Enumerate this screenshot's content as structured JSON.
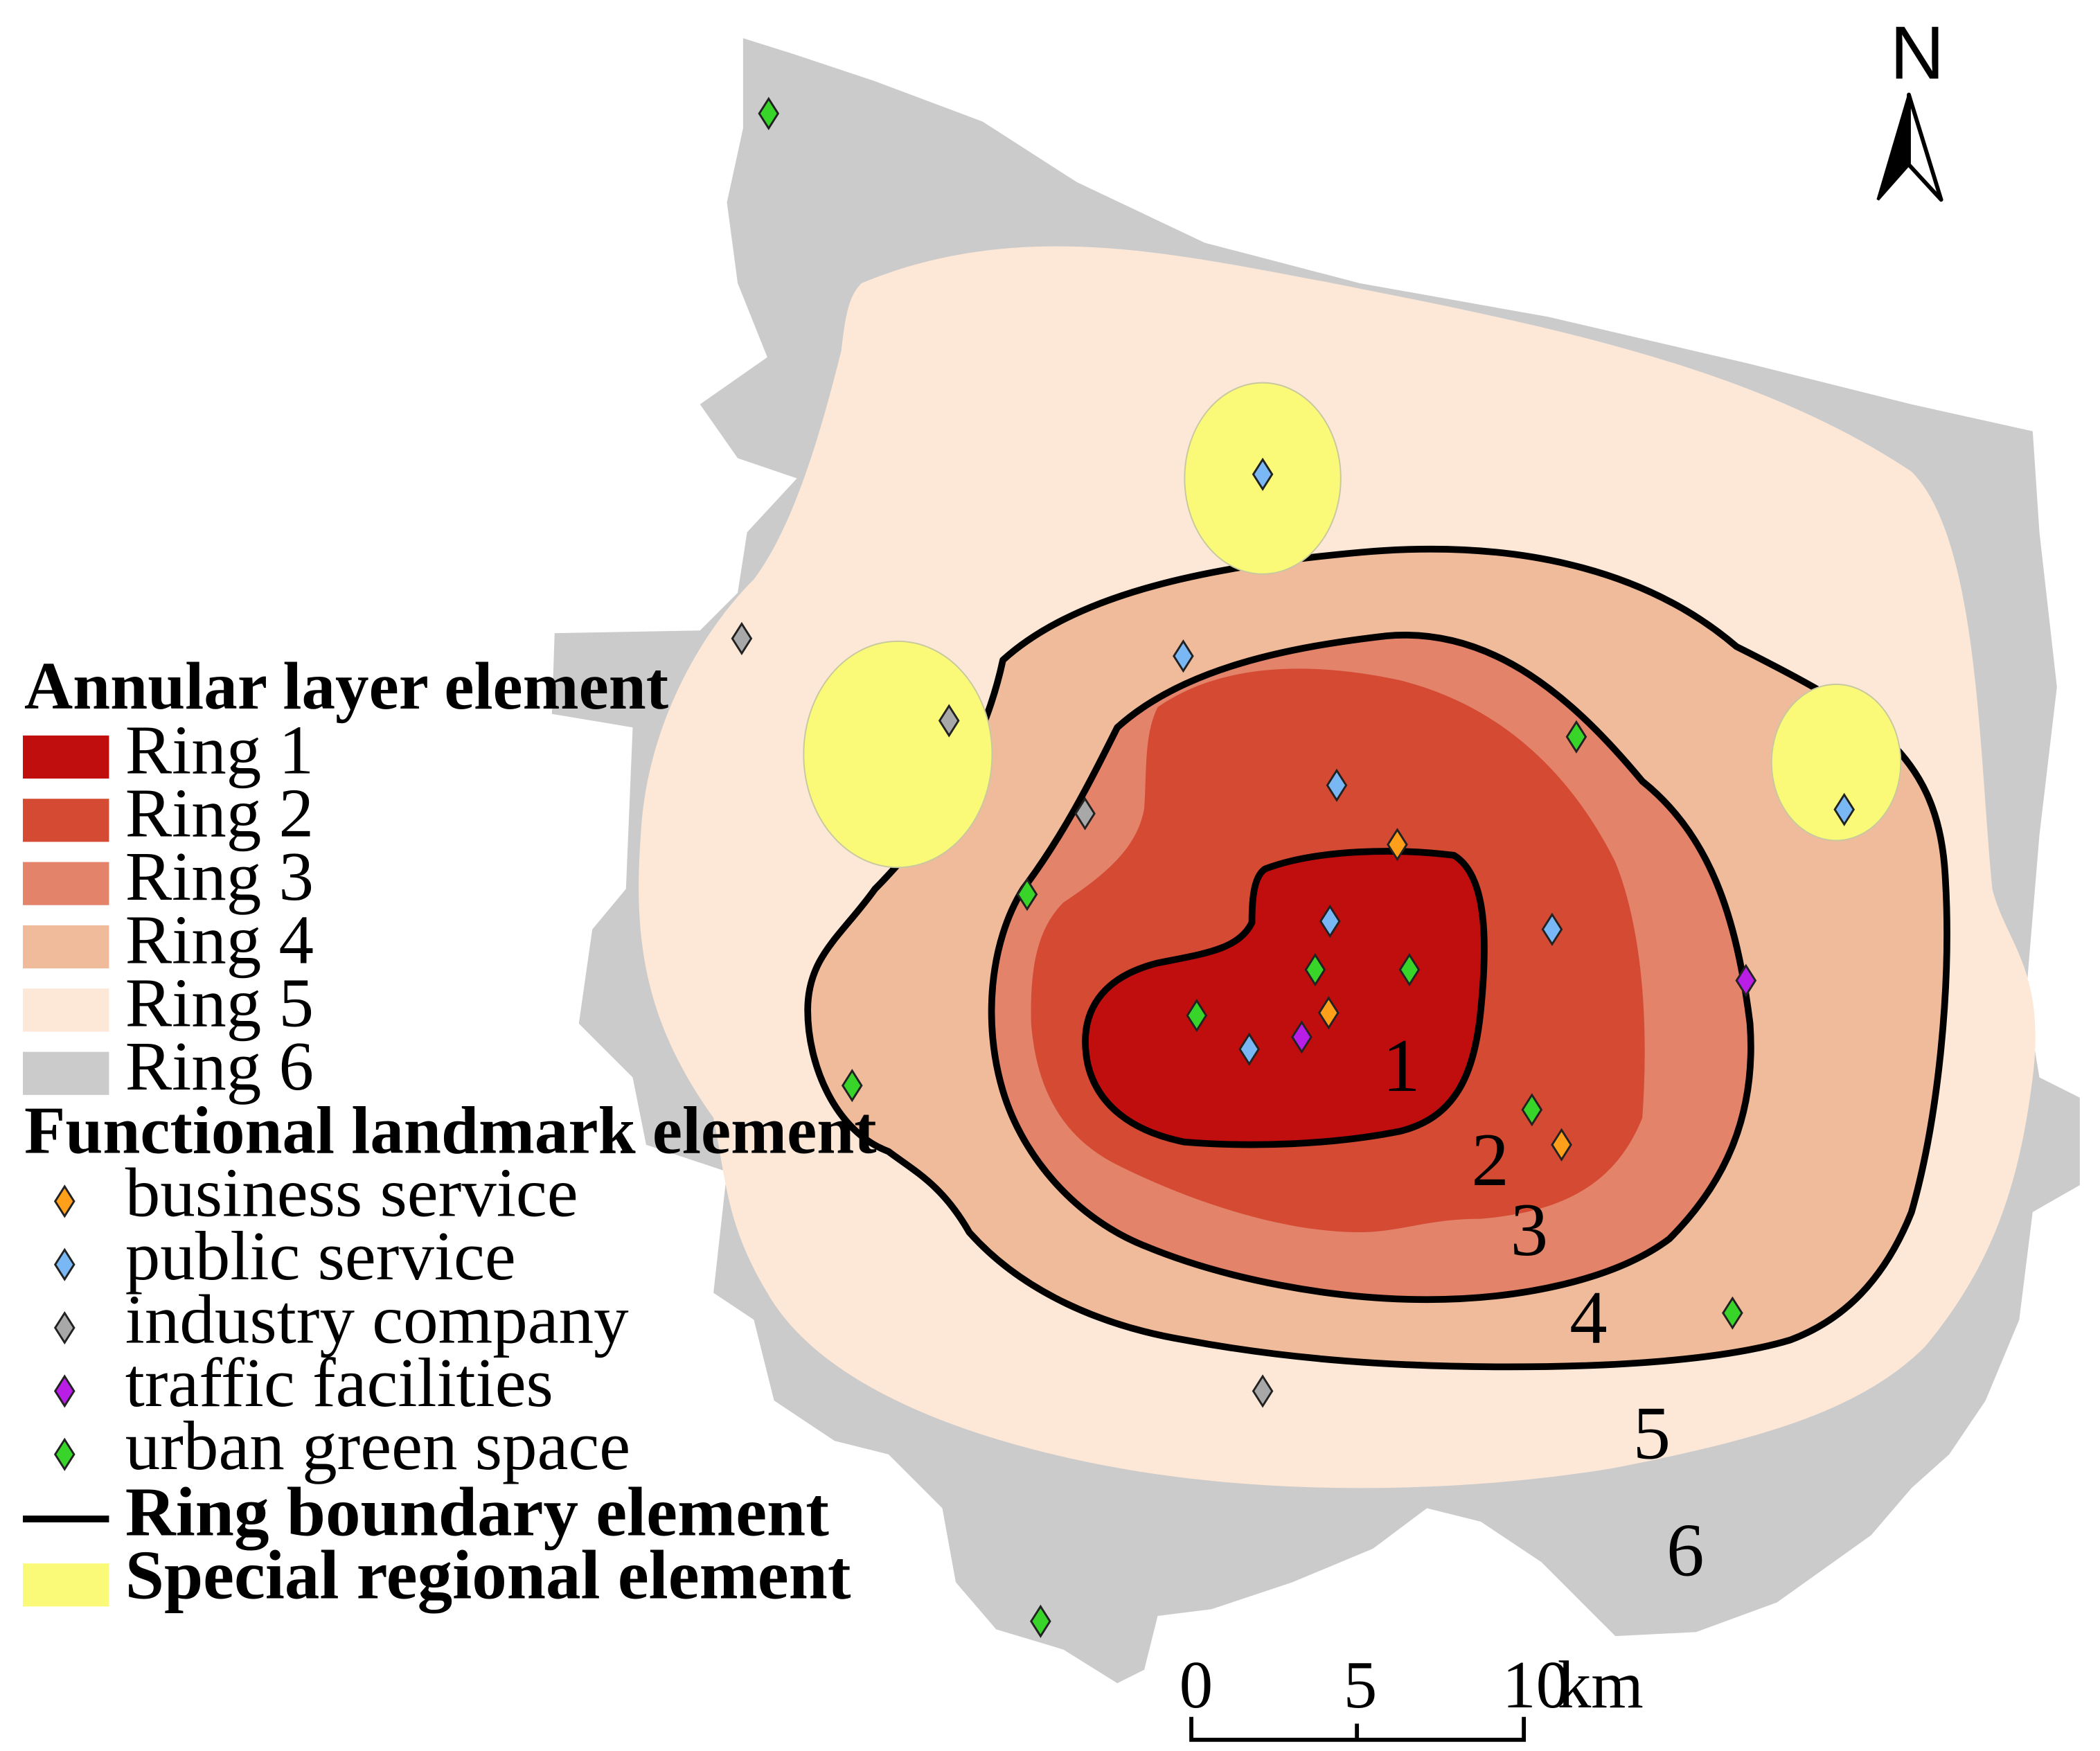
{
  "colors": {
    "ring1": "#c00d0d",
    "ring2": "#d44a33",
    "ring3": "#e2836a",
    "ring4": "#f0bb9b",
    "ring5": "#fde8d8",
    "ring6": "#cbcbcb",
    "special": "#fafa78",
    "boundary": "#000000"
  },
  "landmark_colors": {
    "business": "#ff9f1a",
    "public": "#7ab8f5",
    "industry": "#a8a8a8",
    "traffic": "#b81ee6",
    "green": "#39d42a"
  },
  "legend": {
    "annular_title": "Annular layer element",
    "rings": [
      "Ring 1",
      "Ring 2",
      "Ring 3",
      "Ring 4",
      "Ring 5",
      "Ring 6"
    ],
    "functional_title": "Functional landmark element",
    "landmarks": [
      {
        "label": "business service",
        "type": "business"
      },
      {
        "label": "public service",
        "type": "public"
      },
      {
        "label": "industry company",
        "type": "industry"
      },
      {
        "label": "traffic facilities",
        "type": "traffic"
      },
      {
        "label": "urban green space",
        "type": "green"
      }
    ],
    "boundary_label": "Ring boundary element",
    "special_label": "Special regional element"
  },
  "ring_numbers": [
    "1",
    "2",
    "3",
    "4",
    "5",
    "6"
  ],
  "north": {
    "label": "N",
    "icon": "north-arrow-icon"
  },
  "scale_bar": {
    "ticks": [
      "0",
      "5",
      "10"
    ],
    "unit": "km"
  },
  "landmarks_on_map": [
    {
      "type": "green"
    },
    {
      "type": "public"
    },
    {
      "type": "industry"
    },
    {
      "type": "public"
    },
    {
      "type": "industry"
    },
    {
      "type": "green"
    },
    {
      "type": "public"
    },
    {
      "type": "industry"
    },
    {
      "type": "public"
    },
    {
      "type": "business"
    },
    {
      "type": "green"
    },
    {
      "type": "public"
    },
    {
      "type": "public"
    },
    {
      "type": "green"
    },
    {
      "type": "green"
    },
    {
      "type": "green"
    },
    {
      "type": "business"
    },
    {
      "type": "public"
    },
    {
      "type": "traffic"
    },
    {
      "type": "traffic"
    },
    {
      "type": "green"
    },
    {
      "type": "green"
    },
    {
      "type": "business"
    },
    {
      "type": "green"
    },
    {
      "type": "industry"
    },
    {
      "type": "green"
    }
  ]
}
